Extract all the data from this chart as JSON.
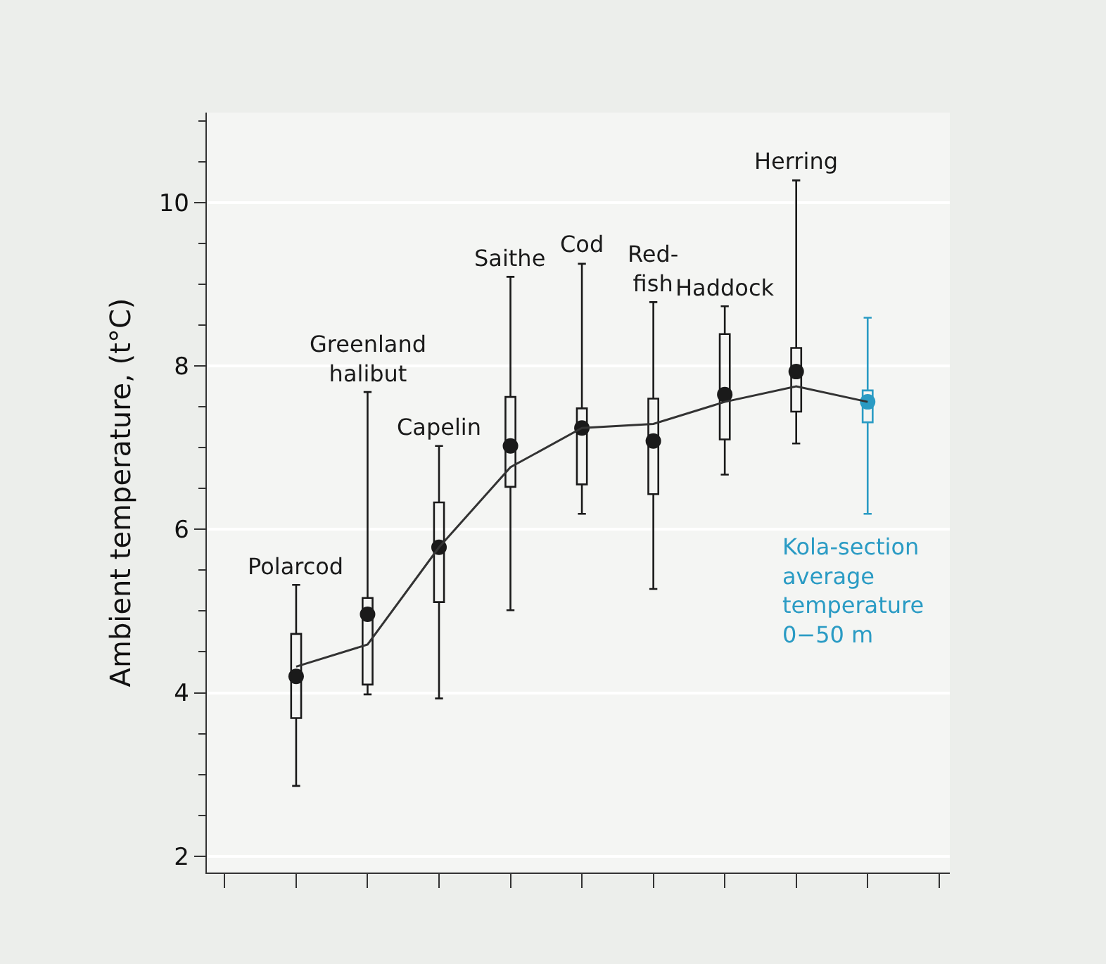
{
  "chart_data": {
    "type": "box",
    "ylabel": "Ambient temperature, (t°C)",
    "categories": [
      null,
      "Polarcod",
      "Greenland halibut",
      "Capelin",
      "Saithe",
      "Cod",
      "Red-fish",
      "Haddock",
      "Herring",
      null,
      null
    ],
    "annotations": [
      "Kola-section average temperature 0−50 m"
    ],
    "ylim": [
      1.8,
      11.1
    ],
    "yticks": [
      2,
      {
        "value": 2.5,
        "label": null
      },
      {
        "value": 3,
        "label": null
      },
      {
        "value": 3.5,
        "label": null
      },
      4,
      {
        "value": 4.5,
        "label": null
      },
      {
        "value": 5,
        "label": null
      },
      {
        "value": 5.5,
        "label": null
      },
      6,
      {
        "value": 6.5,
        "label": null
      },
      {
        "value": 7,
        "label": null
      },
      {
        "value": 7.5,
        "label": null
      },
      8,
      {
        "value": 8.5,
        "label": null
      },
      {
        "value": 9,
        "label": null
      },
      {
        "value": 9.5,
        "label": null
      },
      10,
      {
        "value": 10.5,
        "label": null
      },
      {
        "value": 11,
        "label": null
      }
    ],
    "tick_labels": "y",
    "grid": "y",
    "series": [
      {
        "color": "#1a1a1a",
        "boxes": [
          null,
          {
            "low": 2.86,
            "q1": 3.69,
            "median": 4.2,
            "q3": 4.72,
            "high": 5.32
          },
          {
            "low": 3.98,
            "q1": 4.1,
            "median": 4.96,
            "q3": 5.16,
            "high": 7.68
          },
          {
            "low": 3.93,
            "q1": 5.11,
            "median": 5.78,
            "q3": 6.33,
            "high": 7.02
          },
          {
            "low": 5.01,
            "q1": 6.52,
            "median": 7.02,
            "q3": 7.62,
            "high": 9.09
          },
          {
            "low": 6.19,
            "q1": 6.55,
            "median": 7.24,
            "q3": 7.48,
            "high": 9.25
          },
          {
            "low": 5.27,
            "q1": 6.43,
            "median": 7.08,
            "q3": 7.6,
            "high": 8.78
          },
          {
            "low": 6.67,
            "q1": 7.1,
            "median": 7.65,
            "q3": 8.39,
            "high": 8.73
          },
          {
            "low": 7.05,
            "q1": 7.44,
            "median": 7.93,
            "q3": 8.22,
            "high": 10.27
          },
          null,
          null
        ]
      },
      {
        "color": "#2a9bc4",
        "boxes": [
          null,
          null,
          null,
          null,
          null,
          null,
          null,
          null,
          null,
          {
            "low": 6.19,
            "q1": 7.31,
            "median": 7.56,
            "q3": 7.7,
            "high": 8.59
          },
          null
        ]
      },
      {
        "type": "scatter",
        "marker": "circle",
        "color": "#1a1a1a",
        "values": [
          null,
          4.2,
          4.96,
          5.78,
          7.02,
          7.24,
          7.08,
          7.65,
          7.93,
          null,
          null
        ]
      },
      {
        "type": "scatter",
        "marker": "circle",
        "color": "#2a9bc4",
        "values": [
          null,
          null,
          null,
          null,
          null,
          null,
          null,
          null,
          null,
          7.56,
          null
        ]
      },
      {
        "type": "line",
        "color": "#333333",
        "values": [
          null,
          4.32,
          4.59,
          5.78,
          6.76,
          7.24,
          7.29,
          7.56,
          7.75,
          7.56,
          null
        ]
      }
    ]
  }
}
